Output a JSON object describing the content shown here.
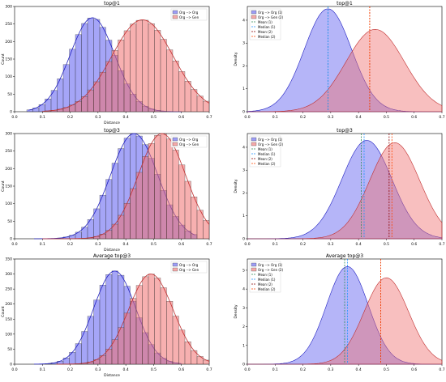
{
  "figure": {
    "colors": {
      "org": "#5b5bf0",
      "gen": "#f07070",
      "overlap": "#a03060",
      "mean": "#2e8b57",
      "median": "#1e90ff",
      "mean2": "#8b0000",
      "median2": "#ff4500"
    }
  },
  "chart_data": [
    {
      "type": "histogram",
      "title": "top@1",
      "xlabel": "Distance",
      "ylabel": "Count",
      "xlim": [
        0.0,
        0.7
      ],
      "ylim": [
        0,
        300
      ],
      "xticks": [
        "0.0",
        "0.1",
        "0.2",
        "0.3",
        "0.4",
        "0.5",
        "0.6",
        "0.7"
      ],
      "yticks": [
        "0",
        "50",
        "100",
        "150",
        "200",
        "250",
        "300"
      ],
      "legend": {
        "placement": "top-right",
        "entries": [
          "Org --> Org",
          "Org --> Gen"
        ]
      },
      "series": [
        {
          "name": "Org --> Org",
          "peak_x": 0.28,
          "peak_y": 268,
          "sd": 0.08,
          "x_range": [
            0.05,
            0.6
          ]
        },
        {
          "name": "Org --> Gen",
          "peak_x": 0.46,
          "peak_y": 262,
          "sd": 0.11,
          "x_range": [
            0.1,
            0.7
          ]
        }
      ]
    },
    {
      "type": "area",
      "title": "top@1",
      "xlabel": "",
      "ylabel": "Density",
      "xlim": [
        0.0,
        0.7
      ],
      "ylim": [
        0,
        4.6
      ],
      "xticks": [
        "0.0",
        "0.1",
        "0.2",
        "0.3",
        "0.4",
        "0.5",
        "0.6",
        "0.7"
      ],
      "yticks": [
        "0",
        "1",
        "2",
        "3",
        "4"
      ],
      "legend": {
        "placement": "top-left",
        "entries": [
          "Org --> Org (1)",
          "Org --> Gen (2)",
          "Mean (1)",
          "Median (1)",
          "Mean (2)",
          "Median (2)"
        ]
      },
      "series": [
        {
          "name": "Org --> Org (1)",
          "peak_x": 0.29,
          "peak_y": 4.5,
          "sd": 0.085
        },
        {
          "name": "Org --> Gen (2)",
          "peak_x": 0.46,
          "peak_y": 3.6,
          "sd": 0.105
        }
      ],
      "lines": [
        0.29,
        0.29,
        0.44,
        0.44
      ]
    },
    {
      "type": "histogram",
      "title": "top@3",
      "xlabel": "Distance",
      "ylabel": "Count",
      "xlim": [
        0.0,
        0.7
      ],
      "ylim": [
        0,
        300
      ],
      "xticks": [
        "0.0",
        "0.1",
        "0.2",
        "0.3",
        "0.4",
        "0.5",
        "0.6",
        "0.7"
      ],
      "yticks": [
        "0",
        "50",
        "100",
        "150",
        "200",
        "250",
        "300"
      ],
      "legend": {
        "placement": "top-right",
        "entries": [
          "Org --> Org",
          "Org --> Gen"
        ]
      },
      "series": [
        {
          "name": "Org --> Org",
          "peak_x": 0.43,
          "peak_y": 300,
          "sd": 0.085,
          "x_range": [
            0.07,
            0.65
          ]
        },
        {
          "name": "Org --> Gen",
          "peak_x": 0.53,
          "peak_y": 300,
          "sd": 0.085,
          "x_range": [
            0.1,
            0.7
          ]
        }
      ]
    },
    {
      "type": "area",
      "title": "top@3",
      "xlabel": "",
      "ylabel": "Density",
      "xlim": [
        0.0,
        0.7
      ],
      "ylim": [
        0,
        4.6
      ],
      "xticks": [
        "0.0",
        "0.1",
        "0.2",
        "0.3",
        "0.4",
        "0.5",
        "0.6",
        "0.7"
      ],
      "yticks": [
        "0",
        "1",
        "2",
        "3",
        "4"
      ],
      "legend": {
        "placement": "top-left",
        "entries": [
          "Org --> Org (1)",
          "Org --> Gen (2)",
          "Mean (1)",
          "Median (1)",
          "Mean (2)",
          "Median (2)"
        ]
      },
      "series": [
        {
          "name": "Org --> Org (1)",
          "peak_x": 0.43,
          "peak_y": 4.3,
          "sd": 0.09
        },
        {
          "name": "Org --> Gen (2)",
          "peak_x": 0.53,
          "peak_y": 4.2,
          "sd": 0.09
        }
      ],
      "lines": [
        0.41,
        0.42,
        0.51,
        0.52
      ]
    },
    {
      "type": "histogram",
      "title": "Average top@3",
      "xlabel": "Distance",
      "ylabel": "Count",
      "xlim": [
        0.0,
        0.7
      ],
      "ylim": [
        0,
        350
      ],
      "xticks": [
        "0.0",
        "0.1",
        "0.2",
        "0.3",
        "0.4",
        "0.5",
        "0.6",
        "0.7"
      ],
      "yticks": [
        "0",
        "50",
        "100",
        "150",
        "200",
        "250",
        "300",
        "350"
      ],
      "legend": {
        "placement": "top-right",
        "entries": [
          "Org --> Org",
          "Org --> Gen"
        ]
      },
      "series": [
        {
          "name": "Org --> Org",
          "peak_x": 0.36,
          "peak_y": 310,
          "sd": 0.075,
          "x_range": [
            0.07,
            0.6
          ]
        },
        {
          "name": "Org --> Gen",
          "peak_x": 0.49,
          "peak_y": 300,
          "sd": 0.08,
          "x_range": [
            0.15,
            0.7
          ]
        }
      ]
    },
    {
      "type": "area",
      "title": "Average top@3",
      "xlabel": "",
      "ylabel": "Density",
      "xlim": [
        0.0,
        0.7
      ],
      "ylim": [
        0,
        5.6
      ],
      "xticks": [
        "0.0",
        "0.1",
        "0.2",
        "0.3",
        "0.4",
        "0.5",
        "0.6",
        "0.7"
      ],
      "yticks": [
        "0",
        "1",
        "2",
        "3",
        "4",
        "5"
      ],
      "legend": {
        "placement": "top-left",
        "entries": [
          "Org --> Org (1)",
          "Org --> Gen (2)",
          "Mean (1)",
          "Median (1)",
          "Mean (2)",
          "Median (2)"
        ]
      },
      "series": [
        {
          "name": "Org --> Org (1)",
          "peak_x": 0.36,
          "peak_y": 5.2,
          "sd": 0.075
        },
        {
          "name": "Org --> Gen (2)",
          "peak_x": 0.5,
          "peak_y": 4.6,
          "sd": 0.08
        }
      ],
      "lines": [
        0.35,
        0.36,
        0.48,
        0.48
      ]
    }
  ]
}
